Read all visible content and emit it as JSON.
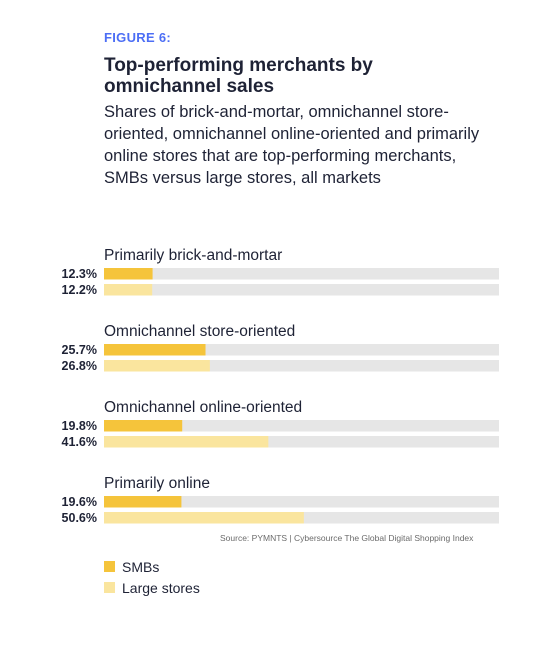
{
  "figure_label": "FIGURE 6:",
  "title": "Top-performing merchants by omnichannel sales",
  "subtitle": "Shares of brick-and-mortar, omnichannel store-oriented, omnichannel online-oriented and primarily online stores that are top-performing merchants, SMBs versus large stores, all markets",
  "source": "Source: PYMNTS | Cybersource The Global Digital Shopping Index",
  "colors": {
    "smb": "#f5c43b",
    "large": "#fae59e",
    "track": "#e6e6e6"
  },
  "chart_data": {
    "type": "bar",
    "orientation": "horizontal",
    "categories": [
      "Primarily brick-and-mortar",
      "Omnichannel store-oriented",
      "Omnichannel online-oriented",
      "Primarily online"
    ],
    "series": [
      {
        "name": "SMBs",
        "values": [
          12.3,
          25.7,
          19.8,
          19.6
        ]
      },
      {
        "name": "Large stores",
        "values": [
          12.2,
          26.8,
          41.6,
          50.6
        ]
      }
    ],
    "value_labels": [
      [
        "12.3%",
        "25.7%",
        "19.8%",
        "19.6%"
      ],
      [
        "12.2%",
        "26.8%",
        "41.6%",
        "50.6%"
      ]
    ],
    "xlim": [
      0,
      100
    ],
    "legend_position": "bottom-left"
  }
}
